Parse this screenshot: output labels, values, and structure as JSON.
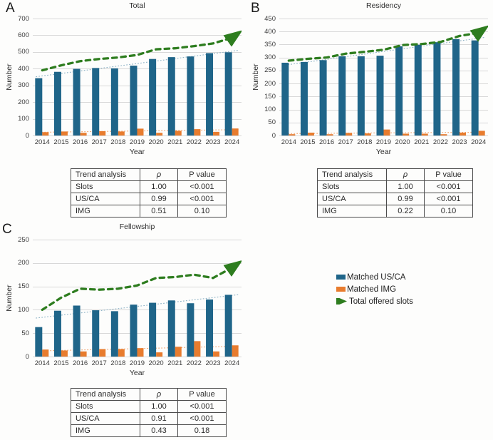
{
  "colors": {
    "us_ca": "#1F6589",
    "img": "#E87C2E",
    "slots": "#2E7D1F",
    "grid": "#D8D8D8",
    "trend_us": "#8FB3C6",
    "trend_img": "#F0A26D"
  },
  "chart_data": [
    {
      "type": "bar",
      "panel": "A",
      "title": "Total",
      "xlabel": "Year",
      "ylabel": "Number",
      "ylim": [
        0,
        700
      ],
      "ytick_step": 100,
      "grid": true,
      "categories": [
        "2014",
        "2015",
        "2016",
        "2017",
        "2018",
        "2019",
        "2020",
        "2021",
        "2022",
        "2023",
        "2024"
      ],
      "series": [
        {
          "name": "Matched US/CA",
          "type": "bar",
          "values": [
            343,
            381,
            399,
            404,
            402,
            418,
            458,
            469,
            473,
            493,
            498
          ]
        },
        {
          "name": "Matched IMG",
          "type": "bar",
          "values": [
            20,
            24,
            16,
            26,
            24,
            41,
            16,
            28,
            38,
            22,
            42
          ]
        },
        {
          "name": "Total offered slots",
          "type": "dashed-arrow-line",
          "values": [
            390,
            420,
            445,
            458,
            467,
            482,
            516,
            522,
            535,
            551,
            585
          ]
        }
      ],
      "trend_table": {
        "headers": [
          "Trend analysis",
          "ρ",
          "P value"
        ],
        "rows": [
          [
            "Slots",
            "1.00",
            "<0.001"
          ],
          [
            "US/CA",
            "0.99",
            "<0.001"
          ],
          [
            "IMG",
            "0.51",
            "0.10"
          ]
        ]
      }
    },
    {
      "type": "bar",
      "panel": "B",
      "title": "Residency",
      "xlabel": "Year",
      "ylabel": "Number",
      "ylim": [
        0,
        450
      ],
      "ytick_step": 50,
      "grid": true,
      "categories": [
        "2014",
        "2015",
        "2016",
        "2017",
        "2018",
        "2019",
        "2020",
        "2021",
        "2022",
        "2023",
        "2024"
      ],
      "series": [
        {
          "name": "Matched US/CA",
          "type": "bar",
          "values": [
            280,
            283,
            290,
            305,
            305,
            307,
            343,
            349,
            359,
            371,
            366
          ]
        },
        {
          "name": "Matched IMG",
          "type": "bar",
          "values": [
            5,
            11,
            5,
            10,
            8,
            23,
            7,
            7,
            5,
            11,
            18
          ]
        },
        {
          "name": "Total offered slots",
          "type": "dashed-arrow-line",
          "values": [
            288,
            295,
            300,
            315,
            322,
            330,
            348,
            352,
            360,
            383,
            395
          ]
        }
      ],
      "trend_table": {
        "headers": [
          "Trend analysis",
          "ρ",
          "P value"
        ],
        "rows": [
          [
            "Slots",
            "1.00",
            "<0.001"
          ],
          [
            "US/CA",
            "0.99",
            "<0.001"
          ],
          [
            "IMG",
            "0.22",
            "0.10"
          ]
        ]
      }
    },
    {
      "type": "bar",
      "panel": "C",
      "title": "Fellowship",
      "xlabel": "Year",
      "ylabel": "Number",
      "ylim": [
        0,
        250
      ],
      "ytick_step": 50,
      "grid": true,
      "categories": [
        "2014",
        "2015",
        "2016",
        "2017",
        "2018",
        "2019",
        "2020",
        "2021",
        "2022",
        "2023",
        "2024"
      ],
      "series": [
        {
          "name": "Matched US/CA",
          "type": "bar",
          "values": [
            63,
            98,
            109,
            99,
            97,
            111,
            115,
            120,
            114,
            122,
            132
          ]
        },
        {
          "name": "Matched IMG",
          "type": "bar",
          "values": [
            15,
            13,
            11,
            16,
            16,
            18,
            9,
            21,
            33,
            11,
            24
          ]
        },
        {
          "name": "Total offered slots",
          "type": "dashed-arrow-line",
          "values": [
            100,
            126,
            145,
            143,
            145,
            152,
            168,
            170,
            175,
            168,
            190
          ]
        }
      ],
      "trend_table": {
        "headers": [
          "Trend analysis",
          "ρ",
          "P value"
        ],
        "rows": [
          [
            "Slots",
            "1.00",
            "<0.001"
          ],
          [
            "US/CA",
            "0.91",
            "<0.001"
          ],
          [
            "IMG",
            "0.43",
            "0.18"
          ]
        ]
      }
    }
  ],
  "legend": {
    "items": [
      {
        "label": "Matched US/CA",
        "swatch": "rect",
        "color_key": "us_ca"
      },
      {
        "label": "Matched IMG",
        "swatch": "rect",
        "color_key": "img"
      },
      {
        "label": "Total offered slots",
        "swatch": "arrow",
        "color_key": "slots"
      }
    ]
  }
}
